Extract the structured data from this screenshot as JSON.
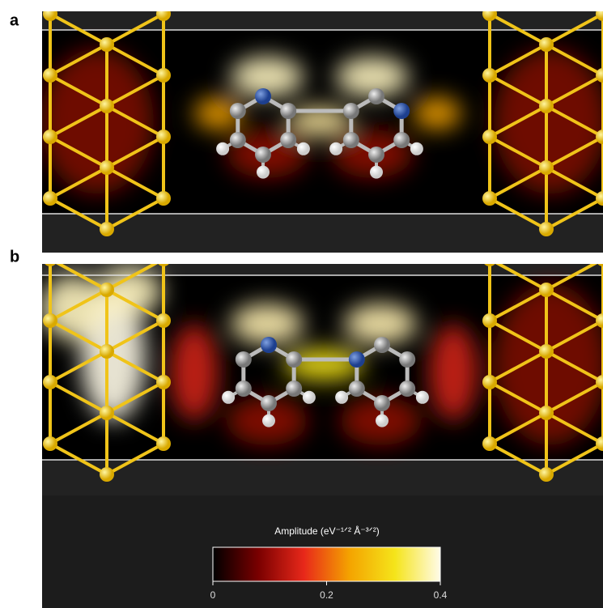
{
  "panels": [
    {
      "label": "a"
    },
    {
      "label": "b"
    }
  ],
  "colorbar": {
    "label": "Amplitude (eV⁻¹ᐟ² Å⁻³ᐟ²)",
    "lim": [
      0,
      0.4
    ],
    "ticks": [
      0,
      0.2,
      0.4
    ],
    "colors": [
      "#000000",
      "#7a0000",
      "#e8281a",
      "#f4a300",
      "#f5e41a",
      "#fffbe8"
    ]
  }
}
